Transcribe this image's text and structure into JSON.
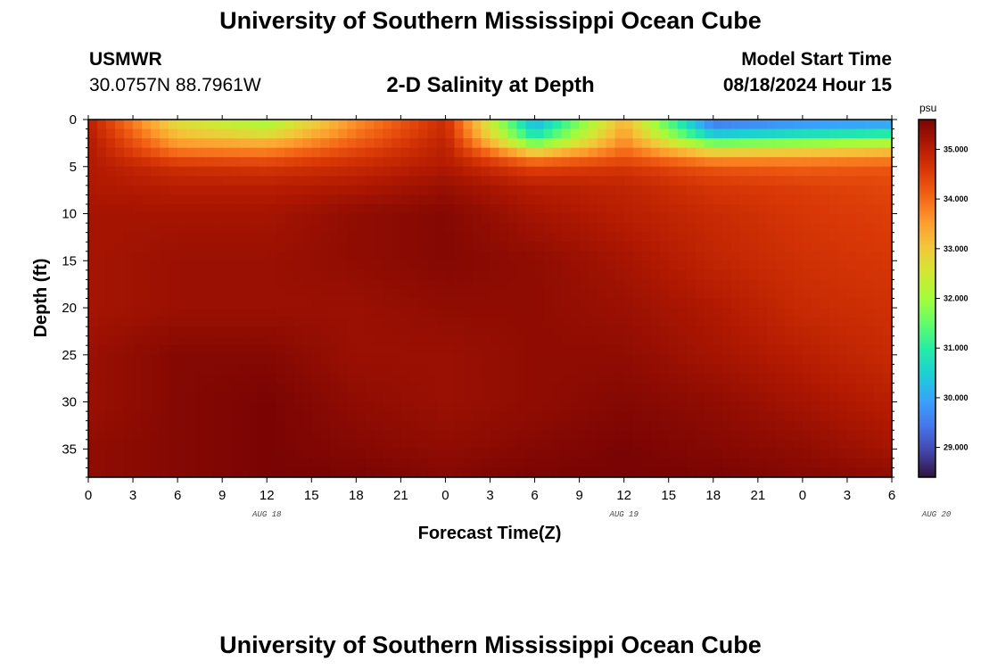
{
  "header": {
    "title": "University of Southern Mississippi Ocean Cube",
    "station": "USMWR",
    "coordinates": "30.0757N  88.7961W",
    "plot_title": "2-D Salinity at Depth",
    "model_start_label": "Model Start Time",
    "model_start_time": "08/18/2024 Hour 15"
  },
  "footer": {
    "title": "University of Southern Mississippi Ocean Cube"
  },
  "colors": {
    "colormap": [
      "#30123b",
      "#4145ab",
      "#4675ed",
      "#39a2fc",
      "#1bcfd4",
      "#24eca6",
      "#61fc6c",
      "#a4fc3b",
      "#d1e834",
      "#f3c63a",
      "#fe9b2d",
      "#f36315",
      "#d93806",
      "#b11901",
      "#7a0403"
    ]
  },
  "chart_data": {
    "type": "heatmap",
    "title": "2-D Salinity at Depth",
    "xlabel": "Forecast Time(Z)",
    "ylabel": "Depth (ft)",
    "x_tick_labels": [
      "0",
      "3",
      "6",
      "9",
      "12",
      "15",
      "18",
      "21",
      "0",
      "3",
      "6",
      "9",
      "12",
      "15",
      "18",
      "21",
      "0",
      "3",
      "6"
    ],
    "date_labels": [
      {
        "label": "AUG 18",
        "x_hour": 12
      },
      {
        "label": "AUG 19",
        "x_hour": 36
      },
      {
        "label": "AUG 20",
        "x_hour": 57
      }
    ],
    "x_range_hours": [
      0,
      54
    ],
    "y_ticks": [
      0,
      5,
      10,
      15,
      20,
      25,
      30,
      35
    ],
    "y_range_ft": [
      0,
      38
    ],
    "y_inverted": true,
    "colorbar": {
      "unit": "psu",
      "range": [
        28.4,
        35.6
      ],
      "tick_values": [
        29,
        30,
        31,
        32,
        33,
        34,
        35
      ],
      "tick_labels": [
        "29.000",
        "30.000",
        "31.000",
        "32.000",
        "33.000",
        "34.000",
        "35.000"
      ]
    },
    "columns_hours": [
      0,
      6,
      12,
      18,
      24,
      30,
      36,
      42,
      48,
      54
    ],
    "rows_depth_ft": [
      0,
      1,
      2,
      3,
      4,
      5,
      7,
      10,
      15,
      20,
      25,
      30,
      35,
      38
    ],
    "salinity_psu": [
      [
        35.0,
        32.6,
        32.0,
        33.6,
        34.8,
        30.0,
        33.2,
        29.4,
        29.6,
        29.7
      ],
      [
        35.0,
        32.9,
        32.3,
        33.8,
        34.8,
        30.4,
        33.4,
        29.8,
        30.2,
        30.4
      ],
      [
        35.1,
        33.3,
        33.0,
        34.0,
        34.9,
        31.0,
        33.6,
        30.9,
        31.2,
        31.5
      ],
      [
        35.1,
        33.7,
        33.6,
        34.3,
        35.0,
        32.2,
        33.9,
        32.3,
        32.5,
        32.8
      ],
      [
        35.1,
        34.2,
        34.1,
        34.6,
        35.0,
        33.6,
        34.2,
        33.4,
        33.5,
        33.6
      ],
      [
        35.1,
        34.7,
        34.6,
        34.8,
        35.1,
        34.4,
        34.6,
        34.2,
        34.1,
        34.2
      ],
      [
        35.1,
        35.0,
        35.0,
        35.1,
        35.3,
        35.0,
        34.9,
        34.6,
        34.5,
        34.4
      ],
      [
        35.2,
        35.2,
        35.2,
        35.4,
        35.5,
        35.2,
        35.0,
        34.8,
        34.6,
        34.5
      ],
      [
        35.2,
        35.3,
        35.3,
        35.4,
        35.5,
        35.4,
        35.2,
        34.9,
        34.7,
        34.6
      ],
      [
        35.2,
        35.3,
        35.3,
        35.3,
        35.4,
        35.4,
        35.3,
        35.1,
        34.8,
        34.7
      ],
      [
        35.3,
        35.5,
        35.5,
        35.3,
        35.3,
        35.4,
        35.4,
        35.2,
        35.0,
        34.8
      ],
      [
        35.3,
        35.5,
        35.6,
        35.4,
        35.3,
        35.4,
        35.5,
        35.4,
        35.2,
        35.0
      ],
      [
        35.4,
        35.5,
        35.6,
        35.5,
        35.4,
        35.5,
        35.6,
        35.5,
        35.4,
        35.2
      ],
      [
        35.4,
        35.5,
        35.6,
        35.6,
        35.5,
        35.6,
        35.6,
        35.6,
        35.5,
        35.4
      ]
    ]
  }
}
